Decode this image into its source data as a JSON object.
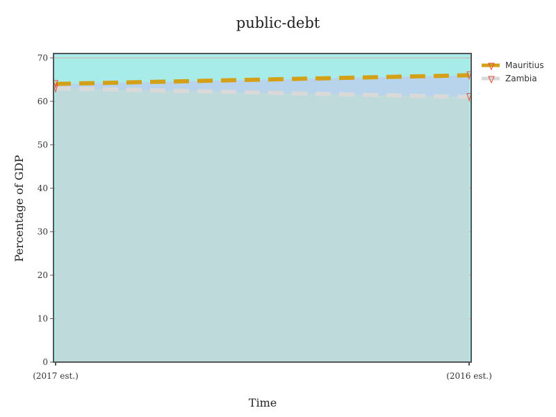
{
  "chart_data": {
    "type": "area",
    "title": "public-debt",
    "xlabel": "Time",
    "ylabel": "Percentage of GDP",
    "categories": [
      "(2017 est.)",
      "(2016 est.)"
    ],
    "ylim": [
      0,
      71
    ],
    "yticks": [
      0,
      10,
      20,
      30,
      40,
      50,
      60,
      70
    ],
    "grid": true,
    "legend_position": "top-right",
    "series": [
      {
        "name": "Mauritius",
        "values": [
          64,
          66
        ],
        "line_color": "#d4a017",
        "fill_color": "#b8d4ec",
        "line_style": "dashed"
      },
      {
        "name": "Zambia",
        "values": [
          63,
          61
        ],
        "line_color": "#d9d9d9",
        "fill_color": "#bfdada",
        "line_style": "dashed"
      }
    ],
    "colors": {
      "plot_background": "#a8ecea",
      "grid": "#d8a99a",
      "axis": "#555555",
      "marker": "#e0503c"
    }
  }
}
